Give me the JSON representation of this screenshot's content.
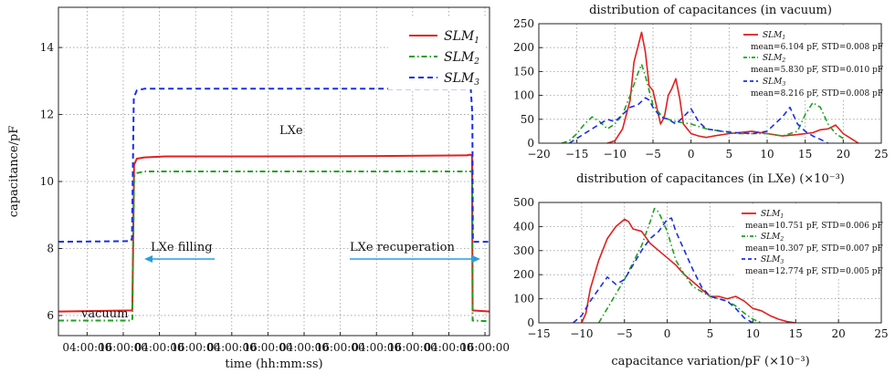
{
  "chart_data": [
    {
      "type": "line",
      "title": "",
      "xlabel": "time (hh:mm:ss)",
      "ylabel": "capacitance/pF",
      "ylim": [
        5.4,
        15.2
      ],
      "yticks": [
        6,
        8,
        10,
        12,
        14
      ],
      "x_tick_labels": [
        "04:00:00",
        "16:00:00",
        "04:00:00",
        "16:00:00",
        "04:00:00",
        "16:00:00",
        "04:00:00",
        "16:00:00",
        "04:00:00",
        "16:00:00",
        "04:00:00",
        "16:00:00"
      ],
      "x_tick_hours": [
        4,
        16,
        28,
        40,
        52,
        64,
        76,
        88,
        100,
        112,
        124,
        136
      ],
      "xlim_hours": [
        -5.5,
        137.5
      ],
      "grid": true,
      "legend": "top-right",
      "legend_entries": [
        "SLM1",
        "SLM2",
        "SLM3"
      ],
      "annotations": {
        "vacuum": "vacuum",
        "lxe": "LXe",
        "filling": "LXe filling",
        "recuperation": "LXe recuperation"
      },
      "series": [
        {
          "name": "SLM1",
          "color": "#e02020",
          "dash": "solid",
          "x": [
            -5.5,
            18.8,
            19.0,
            19.6,
            20.5,
            23,
            30,
            60,
            100,
            130,
            131,
            131.7,
            131.9,
            137.5
          ],
          "y": [
            6.12,
            6.15,
            6.2,
            10.5,
            10.68,
            10.72,
            10.75,
            10.75,
            10.76,
            10.78,
            10.8,
            10.78,
            6.15,
            6.12
          ]
        },
        {
          "name": "SLM2",
          "color": "#1fa01f",
          "dash": "dashdot",
          "x": [
            -5.5,
            18.8,
            19.0,
            19.6,
            20.5,
            23,
            60,
            131.7,
            131.9,
            137.5
          ],
          "y": [
            5.85,
            5.85,
            5.9,
            10.15,
            10.25,
            10.3,
            10.3,
            10.3,
            5.85,
            5.83
          ]
        },
        {
          "name": "SLM3",
          "color": "#1a2ee8",
          "dash": "dashed",
          "x": [
            -5.5,
            18.5,
            18.9,
            19.5,
            20.5,
            23,
            60,
            131.3,
            131.8,
            132.0,
            137.5
          ],
          "y": [
            8.2,
            8.22,
            8.3,
            12.5,
            12.72,
            12.77,
            12.77,
            12.77,
            12.0,
            8.2,
            8.2
          ]
        }
      ]
    },
    {
      "type": "line",
      "title": "distribution of capacitances (in vacuum)",
      "xlabel": "distribution of capacitances (in LXe)  (×10⁻³)",
      "ylabel": "",
      "xlim": [
        -20,
        25
      ],
      "ylim": [
        0,
        250
      ],
      "xticks": [
        -20,
        -15,
        -10,
        -5,
        0,
        5,
        10,
        15,
        20,
        25
      ],
      "yticks": [
        0,
        50,
        100,
        150,
        200,
        250
      ],
      "grid": true,
      "legend": "top-right",
      "series": [
        {
          "name": "SLM1",
          "stats": "mean=6.104 pF, STD=0.008 pF",
          "color": "#e02020",
          "dash": "solid",
          "x": [
            -11,
            -10,
            -9,
            -8,
            -7.5,
            -7,
            -6.5,
            -6,
            -5.5,
            -5,
            -4,
            -3.5,
            -3,
            -2.5,
            -2,
            -1.5,
            -1,
            0,
            1,
            2,
            3,
            5,
            8,
            10,
            12,
            14,
            16,
            17,
            18,
            19,
            20,
            21,
            22
          ],
          "y": [
            0,
            5,
            30,
            90,
            170,
            200,
            232,
            190,
            120,
            110,
            40,
            55,
            100,
            115,
            135,
            95,
            40,
            20,
            15,
            12,
            15,
            20,
            25,
            20,
            15,
            18,
            22,
            28,
            30,
            38,
            20,
            10,
            0
          ]
        },
        {
          "name": "SLM2",
          "stats": "mean=5.830 pF, STD=0.010 pF",
          "color": "#1fa01f",
          "dash": "dashdot",
          "x": [
            -17,
            -16,
            -15,
            -14,
            -13,
            -12,
            -11,
            -10,
            -9,
            -8,
            -7,
            -6.5,
            -6,
            -5,
            -4,
            -3,
            -2,
            0,
            2,
            4,
            6,
            8,
            10,
            12,
            14,
            15,
            16,
            17,
            18,
            19,
            20
          ],
          "y": [
            0,
            5,
            20,
            40,
            55,
            45,
            30,
            40,
            60,
            100,
            145,
            165,
            140,
            80,
            60,
            50,
            45,
            40,
            30,
            25,
            20,
            20,
            20,
            15,
            25,
            60,
            85,
            75,
            40,
            20,
            10
          ]
        },
        {
          "name": "SLM3",
          "stats": "mean=8.216 pF, STD=0.008 pF",
          "color": "#1a2ee8",
          "dash": "dashed",
          "x": [
            -16,
            -15,
            -14,
            -13,
            -12,
            -11,
            -10,
            -9,
            -8,
            -7,
            -6,
            -5.5,
            -5,
            -4,
            -3,
            -2,
            -1,
            0,
            1,
            2,
            4,
            6,
            8,
            10,
            11,
            12,
            13,
            14,
            15,
            16,
            17,
            18
          ],
          "y": [
            0,
            10,
            20,
            30,
            40,
            50,
            45,
            60,
            75,
            80,
            95,
            90,
            75,
            55,
            50,
            40,
            55,
            72,
            45,
            30,
            25,
            22,
            20,
            25,
            40,
            55,
            75,
            40,
            25,
            15,
            8,
            0
          ]
        }
      ]
    },
    {
      "type": "line",
      "title": "",
      "xlabel": "capacitance variation/pF  (×10⁻³)",
      "ylabel": "",
      "xlim": [
        -15,
        25
      ],
      "ylim": [
        0,
        500
      ],
      "xticks": [
        -15,
        -10,
        -5,
        0,
        5,
        10,
        15,
        20,
        25
      ],
      "yticks": [
        0,
        100,
        200,
        300,
        400,
        500
      ],
      "grid": true,
      "legend": "top-right",
      "series": [
        {
          "name": "SLM1",
          "stats": "mean=10.751 pF, STD=0.006 pF",
          "color": "#e02020",
          "dash": "solid",
          "x": [
            -10,
            -9.5,
            -9,
            -8,
            -7,
            -6,
            -5,
            -4.5,
            -4,
            -3,
            -2,
            -1,
            0,
            1,
            2,
            3,
            4,
            5,
            6,
            7,
            8,
            9,
            10,
            11,
            12,
            13,
            14,
            15
          ],
          "y": [
            0,
            40,
            140,
            260,
            350,
            400,
            430,
            420,
            390,
            380,
            330,
            300,
            270,
            240,
            200,
            170,
            140,
            110,
            110,
            100,
            110,
            90,
            60,
            50,
            30,
            15,
            5,
            0
          ]
        },
        {
          "name": "SLM2",
          "stats": "mean=10.307 pF, STD=0.007 pF",
          "color": "#1fa01f",
          "dash": "dashdot",
          "x": [
            -8,
            -7,
            -6,
            -5,
            -4,
            -3,
            -2,
            -1.5,
            -1,
            0,
            1,
            2,
            3,
            4,
            5,
            6,
            7,
            8,
            9,
            10,
            11
          ],
          "y": [
            0,
            60,
            120,
            180,
            250,
            320,
            420,
            475,
            460,
            380,
            260,
            200,
            150,
            130,
            110,
            100,
            90,
            70,
            40,
            15,
            0
          ]
        },
        {
          "name": "SLM3",
          "stats": "mean=12.774 pF, STD=0.005 pF",
          "color": "#1a2ee8",
          "dash": "dashed",
          "x": [
            -11,
            -10,
            -9,
            -8,
            -7,
            -6,
            -5,
            -4,
            -3,
            -2,
            -1,
            0,
            0.5,
            1,
            2,
            3,
            4,
            5,
            6,
            7,
            8,
            9,
            10
          ],
          "y": [
            0,
            30,
            90,
            140,
            190,
            160,
            180,
            240,
            300,
            350,
            380,
            430,
            435,
            380,
            300,
            220,
            150,
            110,
            100,
            90,
            60,
            20,
            0
          ]
        }
      ]
    }
  ]
}
